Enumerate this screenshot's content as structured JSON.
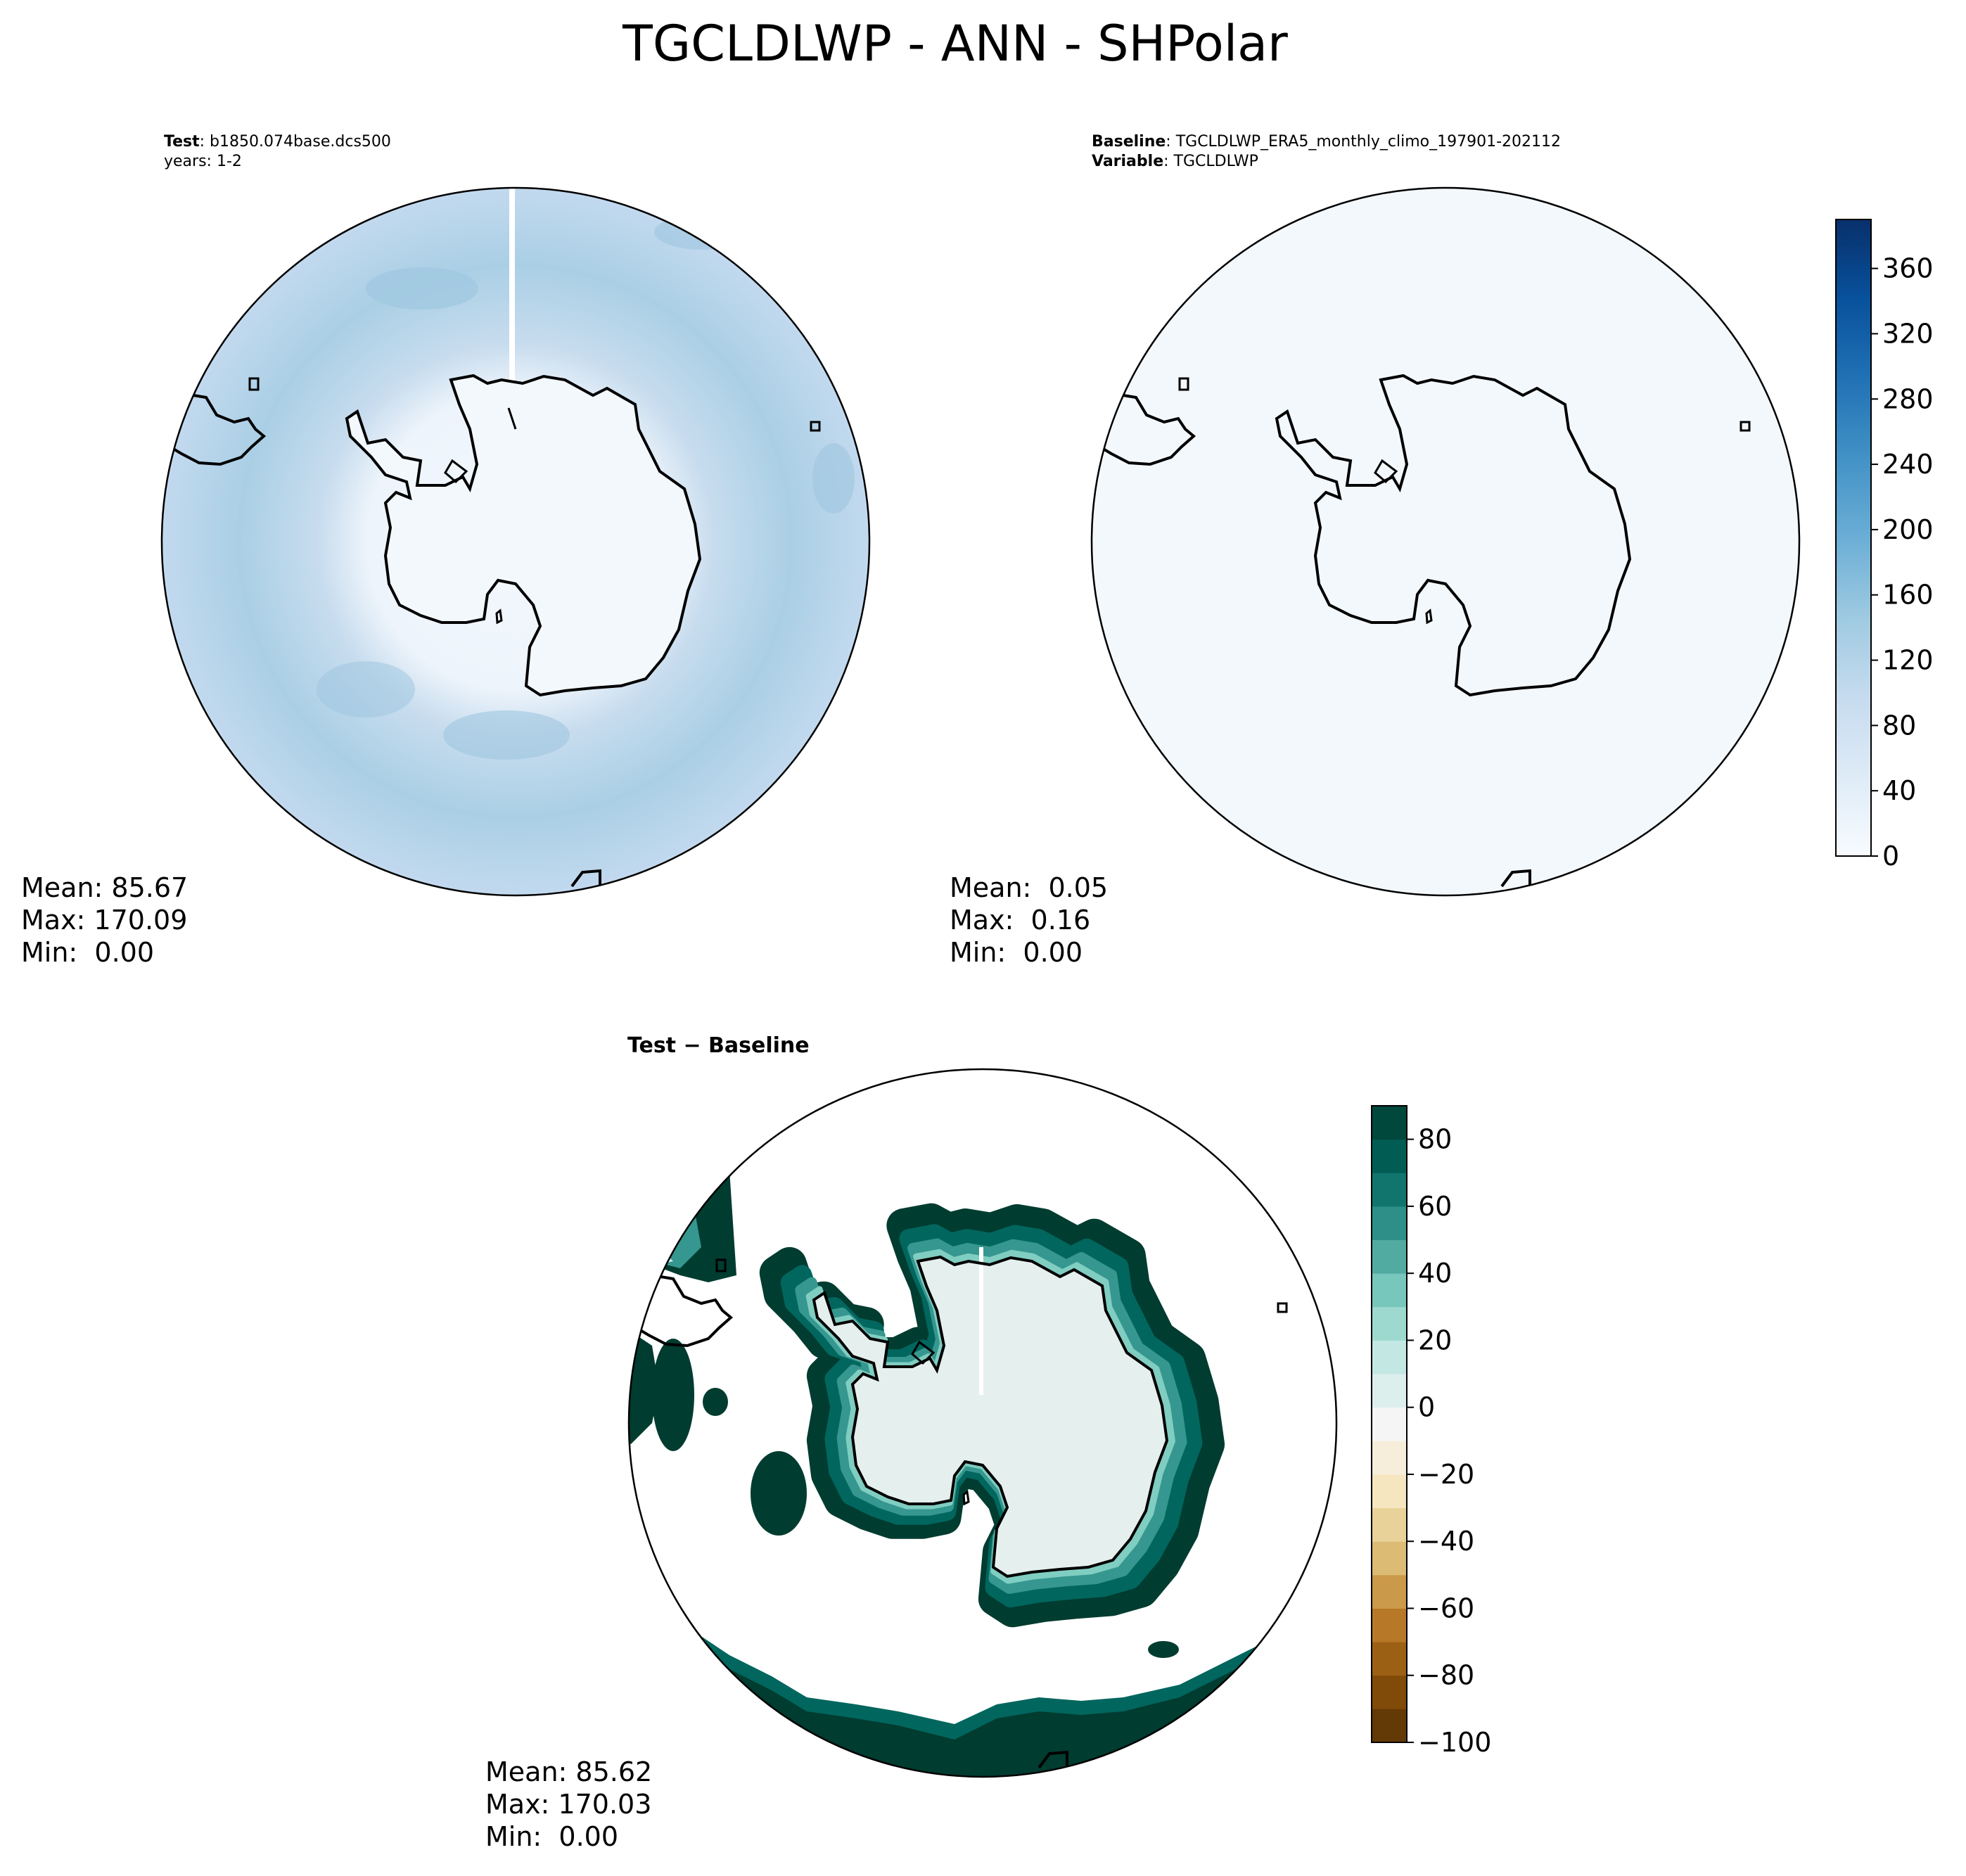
{
  "figure": {
    "title": "TGCLDLWP - ANN - SHPolar"
  },
  "test_panel": {
    "label_bold": "Test",
    "label_value": ": b1850.074base.dcs500",
    "years": "years: 1-2",
    "stats": {
      "mean": "Mean: 85.67",
      "max": "Max: 170.09",
      "min": "Min:  0.00"
    }
  },
  "baseline_panel": {
    "baseline_bold": "Baseline",
    "baseline_value": ": TGCLDLWP_ERA5_monthly_climo_197901-202112",
    "variable_bold": "Variable",
    "variable_value": ": TGCLDLWP",
    "stats": {
      "mean": "Mean:  0.05",
      "max": "Max:  0.16",
      "min": "Min:  0.00"
    }
  },
  "diff_panel": {
    "title": "Test − Baseline",
    "stats": {
      "mean": "Mean: 85.62",
      "max": "Max: 170.03",
      "min": "Min:  0.00"
    }
  },
  "colors": {
    "blues": [
      "#f7fbff",
      "#deebf7",
      "#c6dbef",
      "#9ecae1",
      "#6baed6",
      "#4292c6",
      "#2171b5",
      "#08519c",
      "#08306b"
    ],
    "brbg": [
      "#543005",
      "#8c510a",
      "#bf812d",
      "#dfc27d",
      "#f6e8c3",
      "#f5f5f5",
      "#c7eae5",
      "#80cdc1",
      "#35978f",
      "#01665e",
      "#003c30"
    ]
  },
  "chart_data": [
    {
      "type": "heatmap",
      "title": "Test: b1850.074base.dcs500",
      "projection": "south polar stereographic",
      "colormap": "Blues",
      "summary": {
        "mean": 85.67,
        "max": 170.09,
        "min": 0.0
      },
      "colorbar": {
        "shared_with": "Baseline",
        "ticks": [
          0,
          40,
          80,
          120,
          160,
          200,
          240,
          280,
          320,
          360
        ],
        "range": [
          0,
          390
        ]
      }
    },
    {
      "type": "heatmap",
      "title": "Baseline: TGCLDLWP_ERA5_monthly_climo_197901-202112",
      "projection": "south polar stereographic",
      "colormap": "Blues",
      "summary": {
        "mean": 0.05,
        "max": 0.16,
        "min": 0.0
      },
      "colorbar": {
        "location": "right",
        "ticks": [
          0,
          40,
          80,
          120,
          160,
          200,
          240,
          280,
          320,
          360
        ],
        "range": [
          0,
          390
        ]
      }
    },
    {
      "type": "heatmap",
      "title": "Test − Baseline",
      "projection": "south polar stereographic",
      "colormap": "BrBG",
      "summary": {
        "mean": 85.62,
        "max": 170.03,
        "min": 0.0
      },
      "colorbar": {
        "location": "right",
        "ticks": [
          80,
          60,
          40,
          20,
          0,
          -20,
          -40,
          -60,
          -80,
          -100
        ],
        "range": [
          -100,
          90
        ]
      }
    }
  ]
}
